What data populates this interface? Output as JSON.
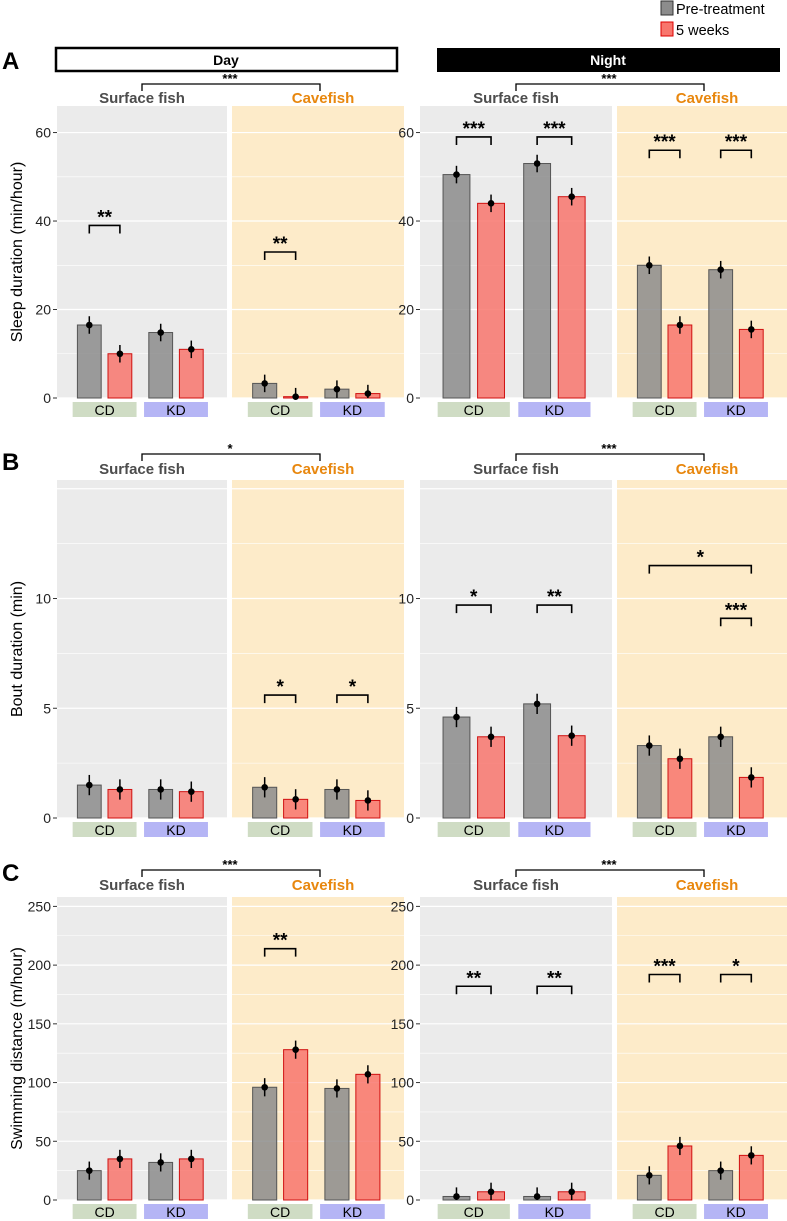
{
  "legend": {
    "items": [
      {
        "label": "Pre-treatment",
        "color": "#8c8c8c"
      },
      {
        "label": "5 weeks",
        "color": "#f8766d"
      }
    ]
  },
  "panel_letters": [
    "A",
    "B",
    "C"
  ],
  "strips": {
    "day": "Day",
    "night": "Night"
  },
  "group_labels": {
    "surface": "Surface fish",
    "cave": "Cavefish"
  },
  "diet_labels": {
    "cd": "CD",
    "kd": "KD"
  },
  "colors": {
    "surface_bg": "#ebebeb",
    "cave_bg": "#fdebc9",
    "pre_fill": "#8c8c8c",
    "post_fill": "#f8766d",
    "cave_label": "#e8870e",
    "surface_label": "#4d4d4d",
    "cd_label_bg": "#cfdcc4",
    "kd_label_bg": "#b5b5f5"
  },
  "chart_data": [
    {
      "type": "bar",
      "row": "A",
      "period": "Day",
      "ylabel": "Sleep duration (min/hour)",
      "ylim": [
        0,
        66
      ],
      "yticks": [
        0,
        20,
        40,
        60
      ],
      "series": [
        {
          "name": "Pre-treatment"
        },
        {
          "name": "5 weeks"
        }
      ],
      "groups": {
        "surface": {
          "CD": [
            16.5,
            10
          ],
          "KD": [
            14.8,
            11
          ]
        },
        "cave": {
          "CD": [
            3.3,
            0.3
          ],
          "KD": [
            2,
            1
          ]
        }
      },
      "group_sig": "***",
      "pair_sig": [
        {
          "group": "surface",
          "diet": "CD",
          "label": "**",
          "y": 39
        },
        {
          "group": "cave",
          "diet": "CD",
          "label": "**",
          "y": 33
        }
      ],
      "cross_sig": []
    },
    {
      "type": "bar",
      "row": "A",
      "period": "Night",
      "ylabel": "",
      "ylim": [
        0,
        66
      ],
      "yticks": [
        0,
        20,
        40,
        60
      ],
      "series": [
        {
          "name": "Pre-treatment"
        },
        {
          "name": "5 weeks"
        }
      ],
      "groups": {
        "surface": {
          "CD": [
            50.5,
            44
          ],
          "KD": [
            53,
            45.5
          ]
        },
        "cave": {
          "CD": [
            30,
            16.5
          ],
          "KD": [
            29,
            15.5
          ]
        }
      },
      "group_sig": "***",
      "pair_sig": [
        {
          "group": "surface",
          "diet": "CD",
          "label": "***",
          "y": 59
        },
        {
          "group": "surface",
          "diet": "KD",
          "label": "***",
          "y": 59
        },
        {
          "group": "cave",
          "diet": "CD",
          "label": "***",
          "y": 56
        },
        {
          "group": "cave",
          "diet": "KD",
          "label": "***",
          "y": 56
        }
      ],
      "cross_sig": []
    },
    {
      "type": "bar",
      "row": "B",
      "period": "Day",
      "ylabel": "Bout duration (min)",
      "ylim": [
        0,
        15.4
      ],
      "yticks": [
        0,
        5,
        10
      ],
      "series": [
        {
          "name": "Pre-treatment"
        },
        {
          "name": "5 weeks"
        }
      ],
      "groups": {
        "surface": {
          "CD": [
            1.5,
            1.3
          ],
          "KD": [
            1.3,
            1.2
          ]
        },
        "cave": {
          "CD": [
            1.4,
            0.85
          ],
          "KD": [
            1.3,
            0.8
          ]
        }
      },
      "group_sig": "*",
      "pair_sig": [
        {
          "group": "cave",
          "diet": "CD",
          "label": "*",
          "y": 5.6
        },
        {
          "group": "cave",
          "diet": "KD",
          "label": "*",
          "y": 5.6
        }
      ],
      "cross_sig": []
    },
    {
      "type": "bar",
      "row": "B",
      "period": "Night",
      "ylabel": "",
      "ylim": [
        0,
        15.4
      ],
      "yticks": [
        0,
        5,
        10
      ],
      "series": [
        {
          "name": "Pre-treatment"
        },
        {
          "name": "5 weeks"
        }
      ],
      "groups": {
        "surface": {
          "CD": [
            4.6,
            3.7
          ],
          "KD": [
            5.2,
            3.75
          ]
        },
        "cave": {
          "CD": [
            3.3,
            2.7
          ],
          "KD": [
            3.7,
            1.85
          ]
        }
      },
      "group_sig": "***",
      "pair_sig": [
        {
          "group": "surface",
          "diet": "CD",
          "label": "*",
          "y": 9.7
        },
        {
          "group": "surface",
          "diet": "KD",
          "label": "**",
          "y": 9.7
        },
        {
          "group": "cave",
          "diet": "KD",
          "label": "***",
          "y": 9.1
        }
      ],
      "cross_sig": [
        {
          "label": "*",
          "y": 11.5
        }
      ]
    },
    {
      "type": "bar",
      "row": "C",
      "period": "Day",
      "ylabel": "Swimming distance (m/hour)",
      "ylim": [
        0,
        258
      ],
      "yticks": [
        0,
        50,
        100,
        150,
        200,
        250
      ],
      "series": [
        {
          "name": "Pre-treatment"
        },
        {
          "name": "5 weeks"
        }
      ],
      "groups": {
        "surface": {
          "CD": [
            25,
            35
          ],
          "KD": [
            32,
            35
          ]
        },
        "cave": {
          "CD": [
            96,
            128
          ],
          "KD": [
            95,
            107
          ]
        }
      },
      "group_sig": "***",
      "pair_sig": [
        {
          "group": "cave",
          "diet": "CD",
          "label": "**",
          "y": 214
        }
      ],
      "cross_sig": []
    },
    {
      "type": "bar",
      "row": "C",
      "period": "Night",
      "ylabel": "",
      "ylim": [
        0,
        258
      ],
      "yticks": [
        0,
        50,
        100,
        150,
        200,
        250
      ],
      "series": [
        {
          "name": "Pre-treatment"
        },
        {
          "name": "5 weeks"
        }
      ],
      "groups": {
        "surface": {
          "CD": [
            3,
            7
          ],
          "KD": [
            3,
            7
          ]
        },
        "cave": {
          "CD": [
            21,
            46
          ],
          "KD": [
            25,
            38
          ]
        }
      },
      "group_sig": "***",
      "pair_sig": [
        {
          "group": "surface",
          "diet": "CD",
          "label": "**",
          "y": 182
        },
        {
          "group": "surface",
          "diet": "KD",
          "label": "**",
          "y": 182
        },
        {
          "group": "cave",
          "diet": "CD",
          "label": "***",
          "y": 192
        },
        {
          "group": "cave",
          "diet": "KD",
          "label": "*",
          "y": 192
        }
      ],
      "cross_sig": []
    }
  ]
}
